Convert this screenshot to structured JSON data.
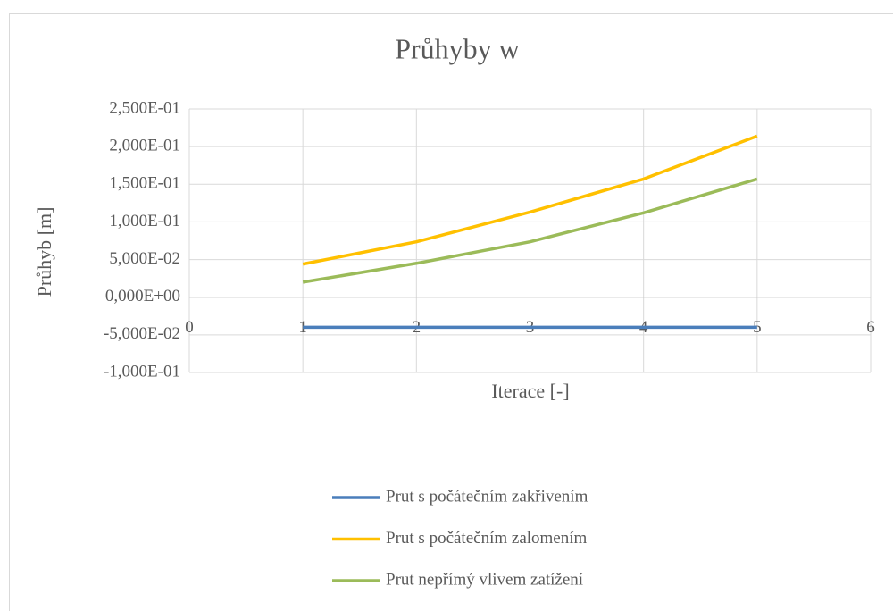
{
  "chart_data": {
    "type": "line",
    "title": "Průhyby w",
    "x_label": "Iterace [-]",
    "y_label": "Průhyb [m]",
    "x": [
      1,
      2,
      3,
      4,
      5
    ],
    "series": [
      {
        "name": "Prut s počátečním zakřivením",
        "color": "#4a7ebb",
        "values": [
          -0.04,
          -0.04,
          -0.04,
          -0.04,
          -0.04
        ]
      },
      {
        "name": "Prut s počátečním zalomením",
        "color": "#ffc000",
        "values": [
          0.044,
          0.0736,
          0.113,
          0.157,
          0.214
        ]
      },
      {
        "name": "Prut nepřímý vlivem zatížení",
        "color": "#9bbb59",
        "values": [
          0.02,
          0.045,
          0.0736,
          0.112,
          0.157
        ]
      }
    ],
    "xlim": [
      0,
      6
    ],
    "xticks": [
      0,
      1,
      2,
      3,
      4,
      5,
      6
    ],
    "ylim": [
      -0.1,
      0.25
    ],
    "yticks": [
      {
        "value": -0.1,
        "label": "-1,000E-01"
      },
      {
        "value": -0.05,
        "label": "-5,000E-02"
      },
      {
        "value": 0,
        "label": "0,000E+00"
      },
      {
        "value": 0.05,
        "label": "5,000E-02"
      },
      {
        "value": 0.1,
        "label": "1,000E-01"
      },
      {
        "value": 0.15,
        "label": "1,500E-01"
      },
      {
        "value": 0.2,
        "label": "2,000E-01"
      },
      {
        "value": 0.25,
        "label": "2,500E-01"
      }
    ],
    "grid": true,
    "legend": "bottom"
  }
}
